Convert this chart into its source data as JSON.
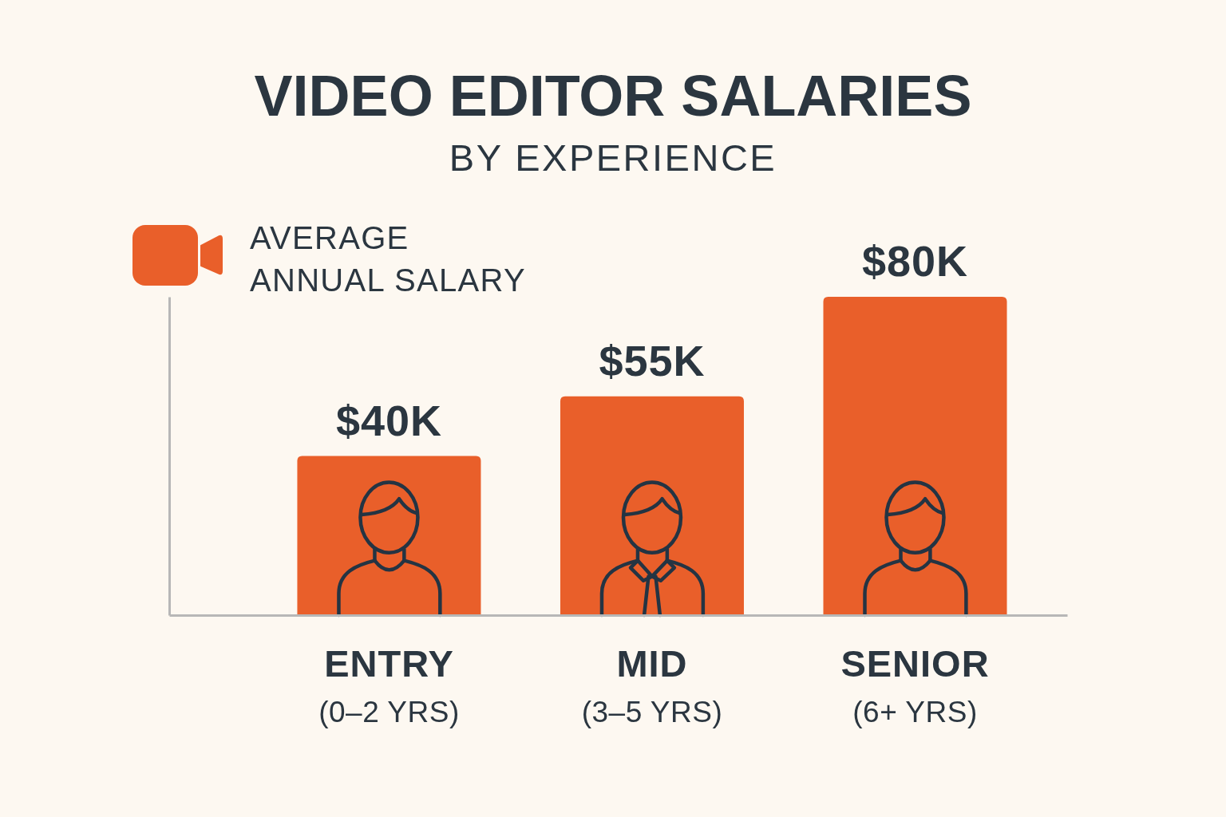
{
  "chart_data": {
    "type": "bar",
    "title": "VIDEO EDITOR SALARIES",
    "subtitle": "BY EXPERIENCE",
    "ylabel": "AVERAGE\nANNUAL SALARY",
    "categories": [
      "ENTRY\n(0–2 YRS)",
      "MID\n(3–5 YRS)",
      "SENIOR\n(6+ YRS)"
    ],
    "values": [
      40,
      55,
      80
    ],
    "value_labels": [
      "$40K",
      "$55K",
      "$80K"
    ],
    "color": "#e95f2a",
    "ylim": [
      0,
      80
    ],
    "tick_labels": "x"
  }
}
